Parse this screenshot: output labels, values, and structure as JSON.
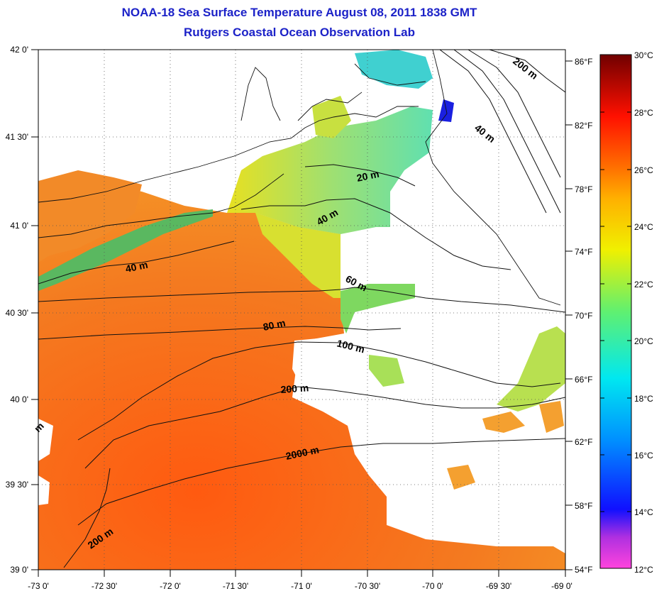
{
  "header": {
    "title": "NOAA-18 Sea Surface Temperature August 08, 2011 1838 GMT",
    "subtitle": "Rutgers Coastal Ocean Observation Lab"
  },
  "map": {
    "lat_labels": [
      "42 0'",
      "41 30'",
      "41 0'",
      "40 30'",
      "40 0'",
      "39 30'",
      "39 0'"
    ],
    "lon_labels": [
      "-73 0'",
      "-72 30'",
      "-72 0'",
      "-71 30'",
      "-71 0'",
      "-70 30'",
      "-70 0'",
      "-69 30'",
      "-69 0'"
    ],
    "fahrenheit_labels": [
      "86°F",
      "82°F",
      "78°F",
      "74°F",
      "70°F",
      "66°F",
      "62°F",
      "58°F",
      "54°F"
    ],
    "contour_labels": [
      "200 m",
      "40 m",
      "20 m",
      "40 m",
      "40 m",
      "60 m",
      "80 m",
      "100 m",
      "200 m",
      "2000 m",
      "200 m",
      "m"
    ]
  },
  "colorbar": {
    "labels": [
      "30°C",
      "28°C",
      "26°C",
      "24°C",
      "22°C",
      "20°C",
      "18°C",
      "16°C",
      "14°C",
      "12°C"
    ],
    "stops": [
      "#ff44dd",
      "#6a22c8",
      "#0010ff",
      "#0080ff",
      "#00e0ff",
      "#50f080",
      "#f0f000",
      "#ffb000",
      "#ff6000",
      "#ff0000",
      "#b00000",
      "#700000"
    ]
  },
  "colors": {
    "title": "#1c22c8",
    "warm": "#f07020",
    "land": "#ffffff"
  }
}
